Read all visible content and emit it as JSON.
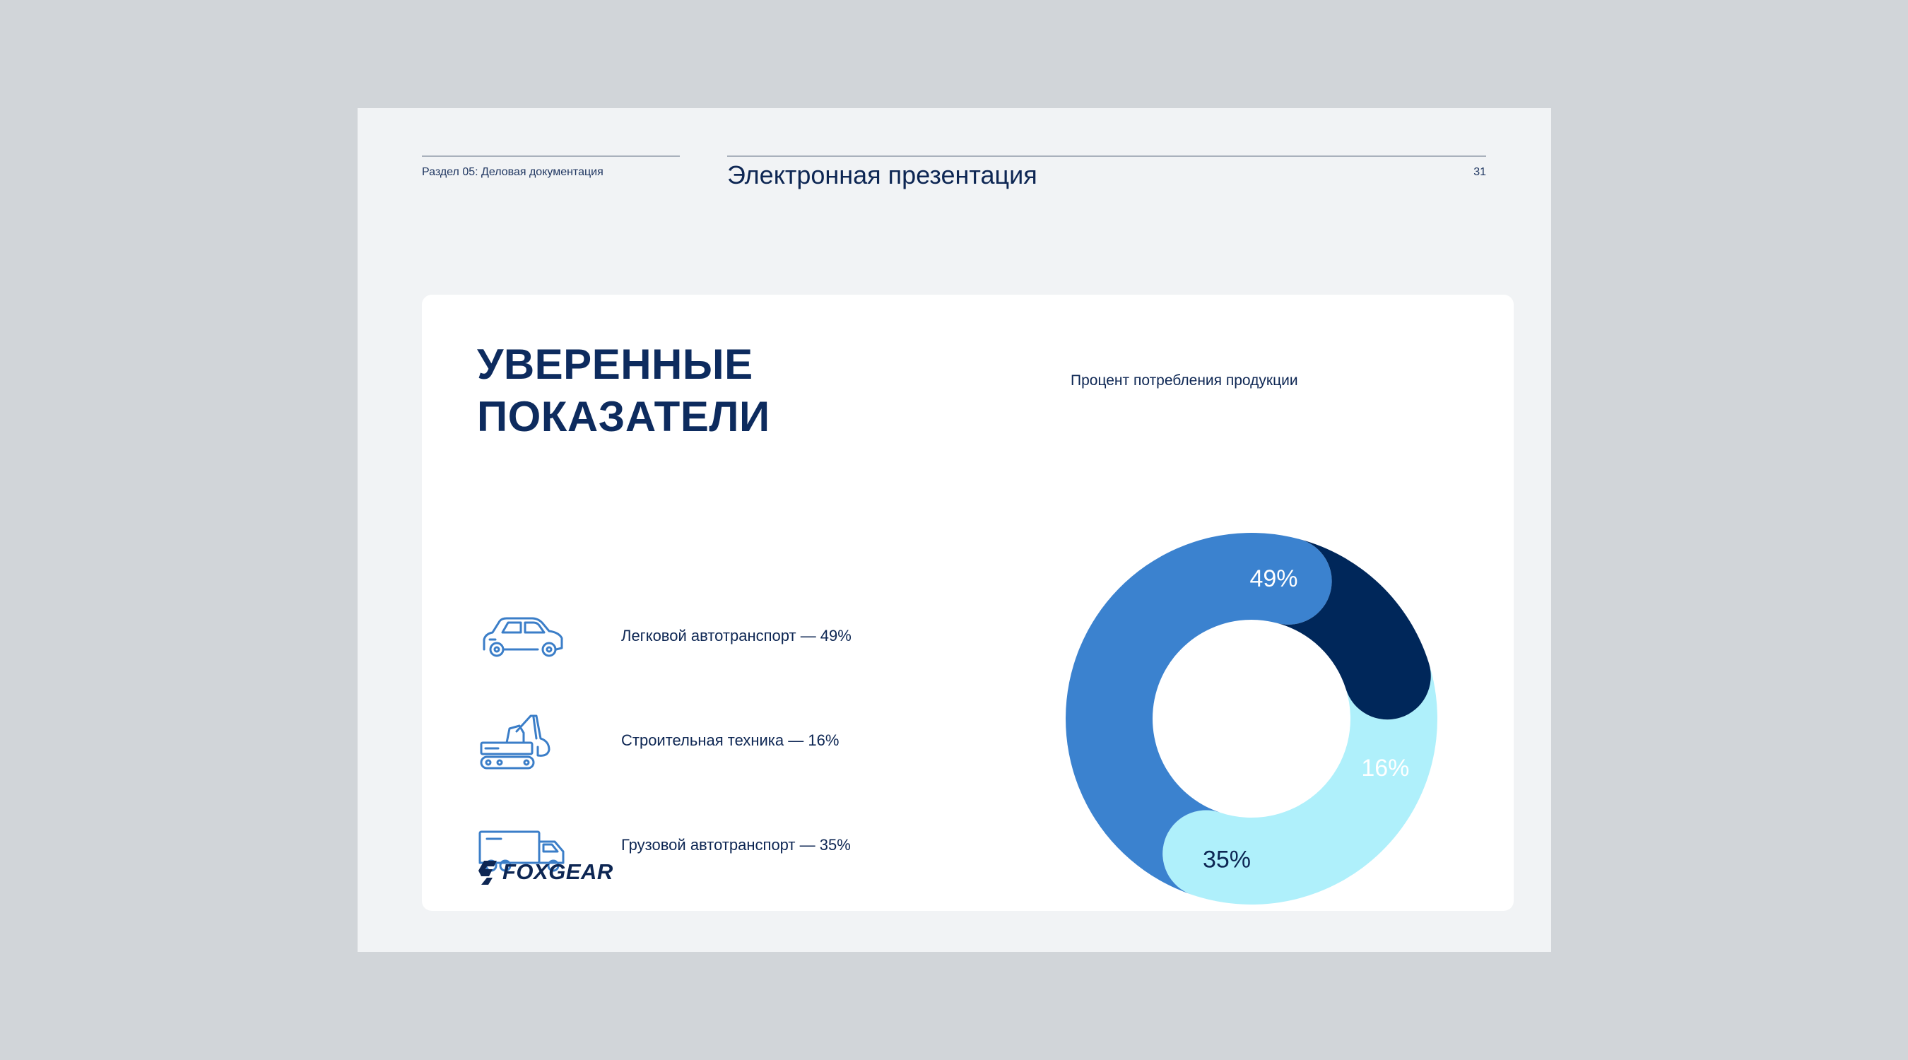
{
  "header": {
    "section_label": "Раздел 05: Деловая документация",
    "doc_title": "Электронная презентация",
    "page_number": "31"
  },
  "headline": {
    "line1": "УВЕРЕННЫЕ",
    "line2": "ПОКАЗАТЕЛИ"
  },
  "legend": [
    {
      "icon": "car-icon",
      "label": "Легковой автотранспорт — 49%"
    },
    {
      "icon": "excavator-icon",
      "label": "Строительная техника — 16%"
    },
    {
      "icon": "truck-icon",
      "label": "Грузовой автотранспорт — 35%"
    }
  ],
  "logo": {
    "text": "FOXGEAR"
  },
  "colors": {
    "light_blue": "#aff0fb",
    "medium_blue": "#3b82cf",
    "navy": "#00275a",
    "dark_text": "#0d2653",
    "icon_blue": "#3b7ec8"
  },
  "chart_data": {
    "type": "pie",
    "title": "Процент потребления продукции",
    "categories": [
      "Легковой автотранспорт",
      "Строительная техника",
      "Грузовой автотранспорт"
    ],
    "values": [
      49,
      16,
      35
    ],
    "labels": [
      "49%",
      "16%",
      "35%"
    ],
    "colors": [
      "#3b82cf",
      "#00275a",
      "#aff0fb"
    ],
    "label_colors": [
      "#ffffff",
      "#ffffff",
      "#0d2653"
    ],
    "donut": true
  }
}
